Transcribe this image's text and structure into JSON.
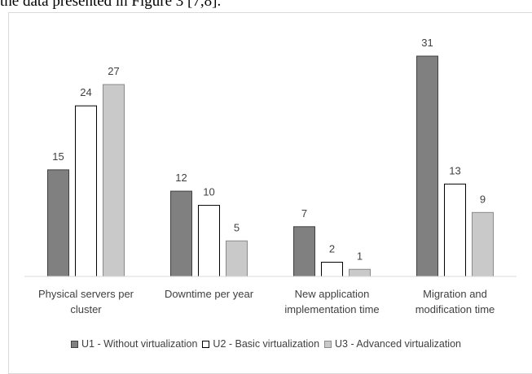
{
  "text": "the data presented in Figure 3 [7,8].",
  "chart_data": {
    "type": "bar",
    "categories": [
      "Physical servers per cluster",
      "Downtime per year",
      "New application implementation time",
      "Migration and modification time"
    ],
    "series": [
      {
        "name": "U1 - Without virtualization",
        "color": "#808080",
        "values": [
          15,
          12,
          7,
          31
        ]
      },
      {
        "name": "U2 - Basic virtualization",
        "color": "#ffffff",
        "values": [
          24,
          10,
          2,
          13
        ]
      },
      {
        "name": "U3 - Advanced virtualization",
        "color": "#c9c9c9",
        "values": [
          27,
          5,
          1,
          9
        ]
      }
    ],
    "ylim": [
      0,
      31
    ],
    "legend": "bottom",
    "grid": false
  }
}
